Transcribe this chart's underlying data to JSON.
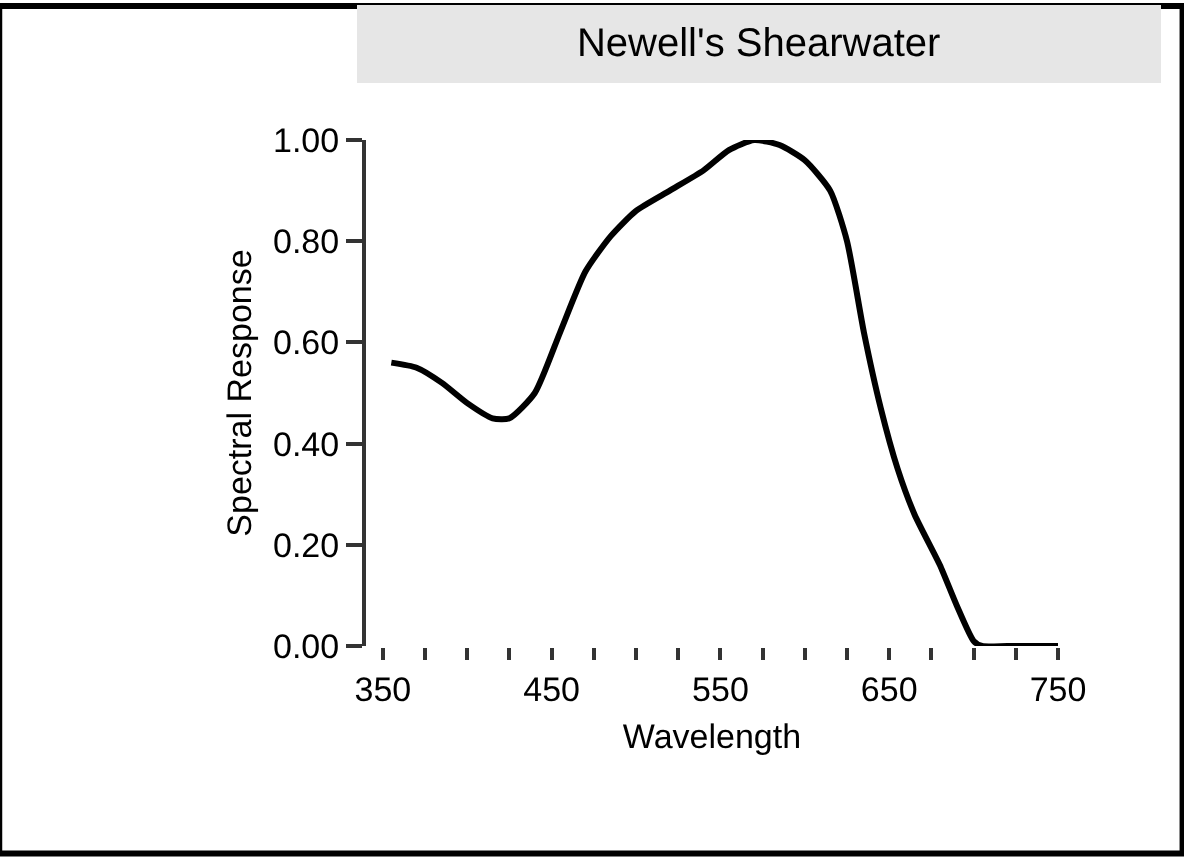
{
  "chart_data": {
    "type": "line",
    "title": "Newell's Shearwater",
    "xlabel": "Wavelength",
    "ylabel": "Spectral Response",
    "x": [
      355,
      370,
      385,
      400,
      415,
      425,
      440,
      455,
      470,
      485,
      500,
      520,
      540,
      555,
      570,
      585,
      600,
      615,
      625,
      635,
      645,
      655,
      665,
      680,
      690,
      700,
      705,
      720,
      740,
      750
    ],
    "series": [
      {
        "color": "#000000",
        "values": [
          0.56,
          0.55,
          0.52,
          0.48,
          0.45,
          0.45,
          0.5,
          0.62,
          0.74,
          0.81,
          0.86,
          0.9,
          0.94,
          0.98,
          1.0,
          0.99,
          0.96,
          0.9,
          0.8,
          0.62,
          0.47,
          0.35,
          0.26,
          0.16,
          0.08,
          0.01,
          0.0,
          0.0,
          0.0,
          0.0
        ]
      }
    ],
    "xlim": [
      340,
      750
    ],
    "ylim": [
      0,
      1
    ],
    "xticks": [
      350,
      {
        "value": 375,
        "label": null
      },
      {
        "value": 400,
        "label": null
      },
      {
        "value": 425,
        "label": null
      },
      450,
      {
        "value": 475,
        "label": null
      },
      {
        "value": 500,
        "label": null
      },
      {
        "value": 525,
        "label": null
      },
      550,
      {
        "value": 575,
        "label": null
      },
      {
        "value": 600,
        "label": null
      },
      {
        "value": 625,
        "label": null
      },
      650,
      {
        "value": 675,
        "label": null
      },
      {
        "value": 700,
        "label": null
      },
      {
        "value": 725,
        "label": null
      },
      750
    ],
    "yticks": [
      {
        "value": 0,
        "label": "0.00"
      },
      {
        "value": 0.2,
        "label": "0.20"
      },
      {
        "value": 0.4,
        "label": "0.40"
      },
      {
        "value": 0.6,
        "label": "0.60"
      },
      {
        "value": 0.8,
        "label": "0.80"
      },
      {
        "value": 1.0,
        "label": "1.00"
      }
    ],
    "legend": false,
    "marker": "none",
    "line_style": "solid"
  }
}
